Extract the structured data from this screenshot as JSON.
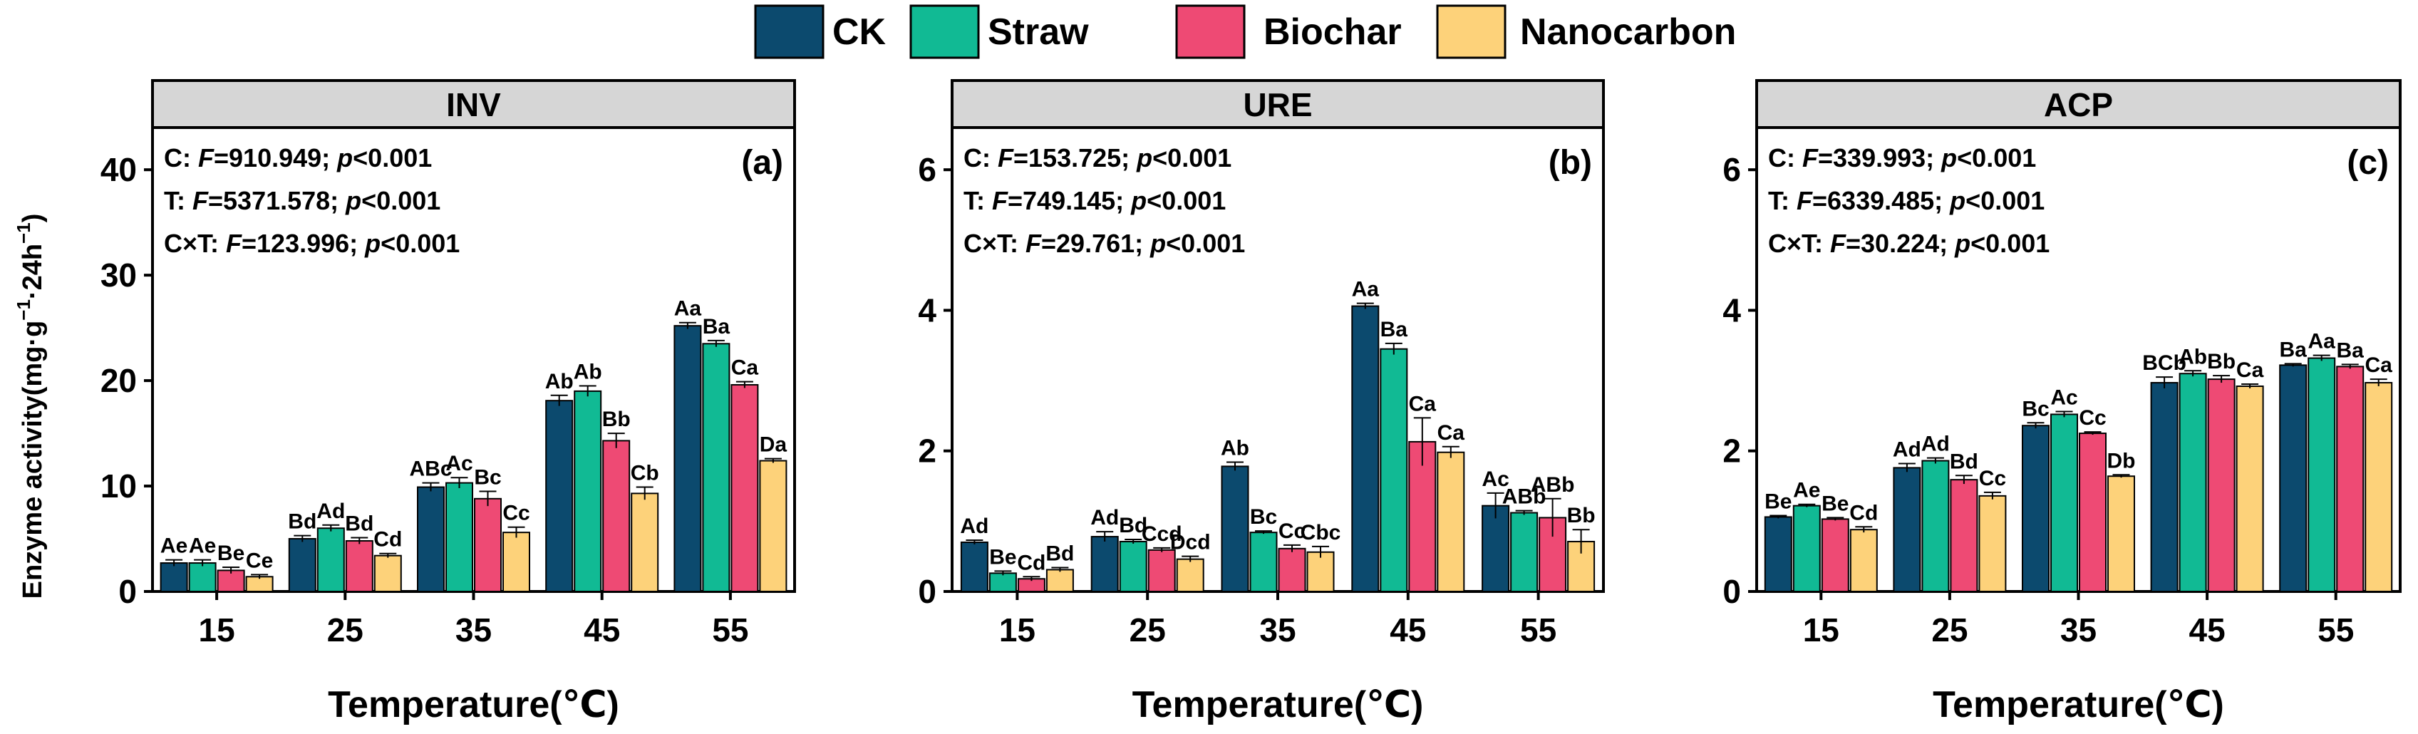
{
  "legend": [
    {
      "label": "CK",
      "color": "#0c4a6e"
    },
    {
      "label": "Straw",
      "color": "#11ba94"
    },
    {
      "label": "Biochar",
      "color": "#ee4a74"
    },
    {
      "label": "Nanocarbon",
      "color": "#fdd27a"
    }
  ],
  "ylabel_main": "Enzyme activity(mg·g",
  "ylabel_sup1": "−1",
  "ylabel_mid": "·24h",
  "ylabel_sup2": "−1",
  "ylabel_end": ")",
  "chart_data": [
    {
      "type": "bar",
      "title": "INV",
      "panel_label": "(a)",
      "xlabel": "Temperature(℃)",
      "ylim": [
        0,
        44
      ],
      "yticks": [
        "0",
        "10",
        "20",
        "30",
        "40"
      ],
      "ytick_values": [
        0,
        10,
        20,
        30,
        40
      ],
      "categories": [
        "15",
        "25",
        "35",
        "45",
        "55"
      ],
      "stats": [
        {
          "prefix": "C: ",
          "F": "F",
          "stat": "=910.949; ",
          "p": "p",
          "sig": "<0.001"
        },
        {
          "prefix": "T: ",
          "F": "F",
          "stat": "=5371.578; ",
          "p": "p",
          "sig": "<0.001"
        },
        {
          "prefix": "C×T: ",
          "F": "F",
          "stat": "=123.996; ",
          "p": "p",
          "sig": "<0.001"
        }
      ],
      "series": [
        {
          "name": "CK",
          "values": [
            2.7,
            5.0,
            9.9,
            18.1,
            25.2
          ],
          "errors": [
            0.3,
            0.3,
            0.4,
            0.5,
            0.3
          ],
          "labels": [
            "Ae",
            "Bd",
            "ABc",
            "Ab",
            "Aa"
          ]
        },
        {
          "name": "Straw",
          "values": [
            2.7,
            6.0,
            10.3,
            19.0,
            23.5
          ],
          "errors": [
            0.3,
            0.3,
            0.5,
            0.5,
            0.3
          ],
          "labels": [
            "Ae",
            "Ad",
            "Ac",
            "Ab",
            "Ba"
          ]
        },
        {
          "name": "Biochar",
          "values": [
            2.0,
            4.8,
            8.8,
            14.3,
            19.6
          ],
          "errors": [
            0.3,
            0.3,
            0.7,
            0.7,
            0.3
          ],
          "labels": [
            "Be",
            "Bd",
            "Bc",
            "Bb",
            "Ca"
          ]
        },
        {
          "name": "Nanocarbon",
          "values": [
            1.4,
            3.4,
            5.6,
            9.3,
            12.4
          ],
          "errors": [
            0.2,
            0.2,
            0.5,
            0.6,
            0.2
          ],
          "labels": [
            "Ce",
            "Cd",
            "Cc",
            "Cb",
            "Da"
          ]
        }
      ]
    },
    {
      "type": "bar",
      "title": "URE",
      "panel_label": "(b)",
      "xlabel": "Temperature(℃)",
      "ylim": [
        0,
        6.6
      ],
      "yticks": [
        "0",
        "2",
        "4",
        "6"
      ],
      "ytick_values": [
        0,
        2,
        4,
        6
      ],
      "categories": [
        "15",
        "25",
        "35",
        "45",
        "55"
      ],
      "stats": [
        {
          "prefix": "C: ",
          "F": "F",
          "stat": "=153.725; ",
          "p": "p",
          "sig": "<0.001"
        },
        {
          "prefix": "T: ",
          "F": "F",
          "stat": "=749.145; ",
          "p": "p",
          "sig": "<0.001"
        },
        {
          "prefix": "C×T: ",
          "F": "F",
          "stat": "=29.761; ",
          "p": "p",
          "sig": "<0.001"
        }
      ],
      "series": [
        {
          "name": "CK",
          "values": [
            0.7,
            0.78,
            1.78,
            4.06,
            1.22
          ],
          "errors": [
            0.03,
            0.07,
            0.06,
            0.04,
            0.18
          ],
          "labels": [
            "Ad",
            "Ad",
            "Ab",
            "Aa",
            "Ac"
          ]
        },
        {
          "name": "Straw",
          "values": [
            0.26,
            0.71,
            0.84,
            3.45,
            1.12
          ],
          "errors": [
            0.03,
            0.03,
            0.02,
            0.08,
            0.03
          ],
          "labels": [
            "Be",
            "Bd",
            "Bc",
            "Ba",
            "ABb"
          ]
        },
        {
          "name": "Biochar",
          "values": [
            0.18,
            0.59,
            0.61,
            2.13,
            1.05
          ],
          "errors": [
            0.03,
            0.03,
            0.05,
            0.34,
            0.27
          ],
          "labels": [
            "Cd",
            "Ccd",
            "Cc",
            "Ca",
            "ABb"
          ]
        },
        {
          "name": "Nanocarbon",
          "values": [
            0.31,
            0.46,
            0.56,
            1.98,
            0.71
          ],
          "errors": [
            0.03,
            0.04,
            0.08,
            0.08,
            0.17
          ],
          "labels": [
            "Bd",
            "Dcd",
            "Cbc",
            "Ca",
            "Bb"
          ]
        }
      ]
    },
    {
      "type": "bar",
      "title": "ACP",
      "panel_label": "(c)",
      "xlabel": "Temperature(℃)",
      "ylim": [
        0,
        6.6
      ],
      "yticks": [
        "0",
        "2",
        "4",
        "6"
      ],
      "ytick_values": [
        0,
        2,
        4,
        6
      ],
      "categories": [
        "15",
        "25",
        "35",
        "45",
        "55"
      ],
      "stats": [
        {
          "prefix": "C: ",
          "F": "F",
          "stat": "=339.993; ",
          "p": "p",
          "sig": "<0.001"
        },
        {
          "prefix": "T: ",
          "F": "F",
          "stat": "=6339.485; ",
          "p": "p",
          "sig": "<0.001"
        },
        {
          "prefix": "C×T: ",
          "F": "F",
          "stat": "=30.224; ",
          "p": "p",
          "sig": "<0.001"
        }
      ],
      "series": [
        {
          "name": "CK",
          "values": [
            1.06,
            1.76,
            2.36,
            2.97,
            3.22
          ],
          "errors": [
            0.02,
            0.06,
            0.04,
            0.08,
            0.02
          ],
          "labels": [
            "Be",
            "Ad",
            "Bc",
            "BCb",
            "Ba"
          ]
        },
        {
          "name": "Straw",
          "values": [
            1.22,
            1.86,
            2.52,
            3.1,
            3.32
          ],
          "errors": [
            0.02,
            0.04,
            0.04,
            0.04,
            0.04
          ],
          "labels": [
            "Ae",
            "Ad",
            "Ac",
            "Ab",
            "Aa"
          ]
        },
        {
          "name": "Biochar",
          "values": [
            1.03,
            1.59,
            2.25,
            3.02,
            3.2
          ],
          "errors": [
            0.02,
            0.06,
            0.02,
            0.05,
            0.03
          ],
          "labels": [
            "Be",
            "Bd",
            "Cc",
            "Bb",
            "Ba"
          ]
        },
        {
          "name": "Nanocarbon",
          "values": [
            0.88,
            1.36,
            1.64,
            2.92,
            2.97
          ],
          "errors": [
            0.04,
            0.05,
            0.02,
            0.03,
            0.05
          ],
          "labels": [
            "Cd",
            "Cc",
            "Db",
            "Ca",
            "Ca"
          ]
        }
      ]
    }
  ]
}
